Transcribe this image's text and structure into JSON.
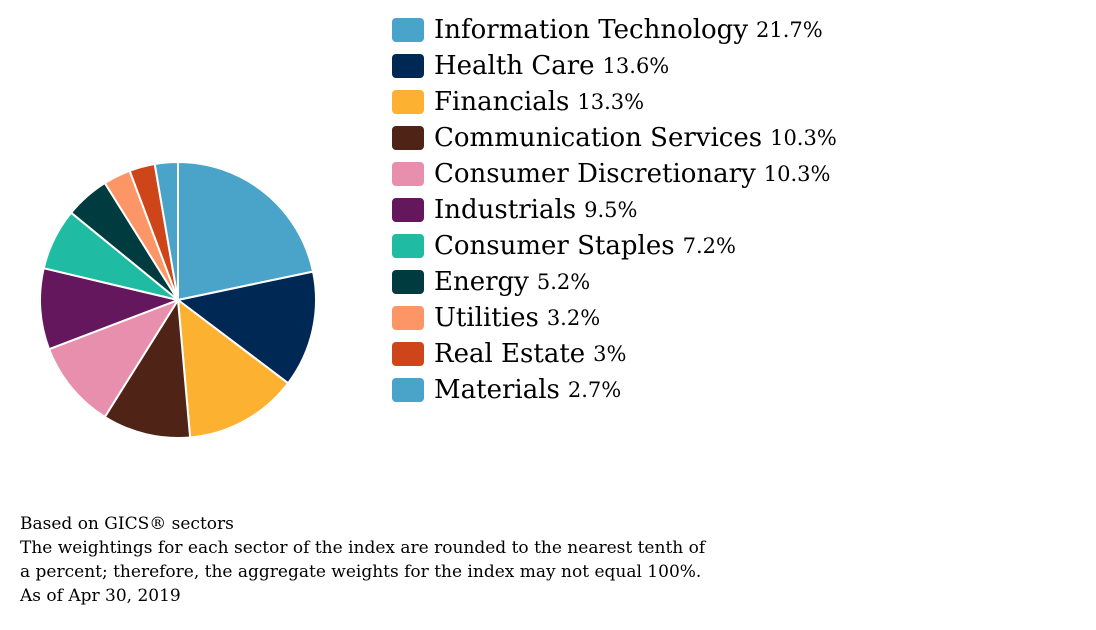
{
  "chart_data": {
    "type": "pie",
    "categories": [
      "Information Technology",
      "Health Care",
      "Financials",
      "Communication Services",
      "Consumer Discretionary",
      "Industrials",
      "Consumer Staples",
      "Energy",
      "Utilities",
      "Real Estate",
      "Materials"
    ],
    "values": [
      21.7,
      13.6,
      13.3,
      10.3,
      10.3,
      9.5,
      7.2,
      5.2,
      3.2,
      3,
      2.7
    ],
    "value_labels": [
      "21.7%",
      "13.6%",
      "13.3%",
      "10.3%",
      "10.3%",
      "9.5%",
      "7.2%",
      "5.2%",
      "3.2%",
      "3%",
      "2.7%"
    ],
    "colors": [
      "#4aa3c8",
      "#002855",
      "#fdb130",
      "#4f2416",
      "#e88fad",
      "#65175e",
      "#1fbba2",
      "#003c3f",
      "#fd9667",
      "#cf451a",
      "#4aa3c8"
    ],
    "legend_position": "right",
    "start_angle": "12 o'clock, clockwise"
  },
  "footnotes": {
    "line1": "Based on GICS® sectors",
    "line2": "The weightings for each sector of the index are rounded to the nearest tenth of",
    "line3": "a percent; therefore, the aggregate weights for the index may not equal 100%.",
    "line4": "As of Apr 30, 2019"
  }
}
